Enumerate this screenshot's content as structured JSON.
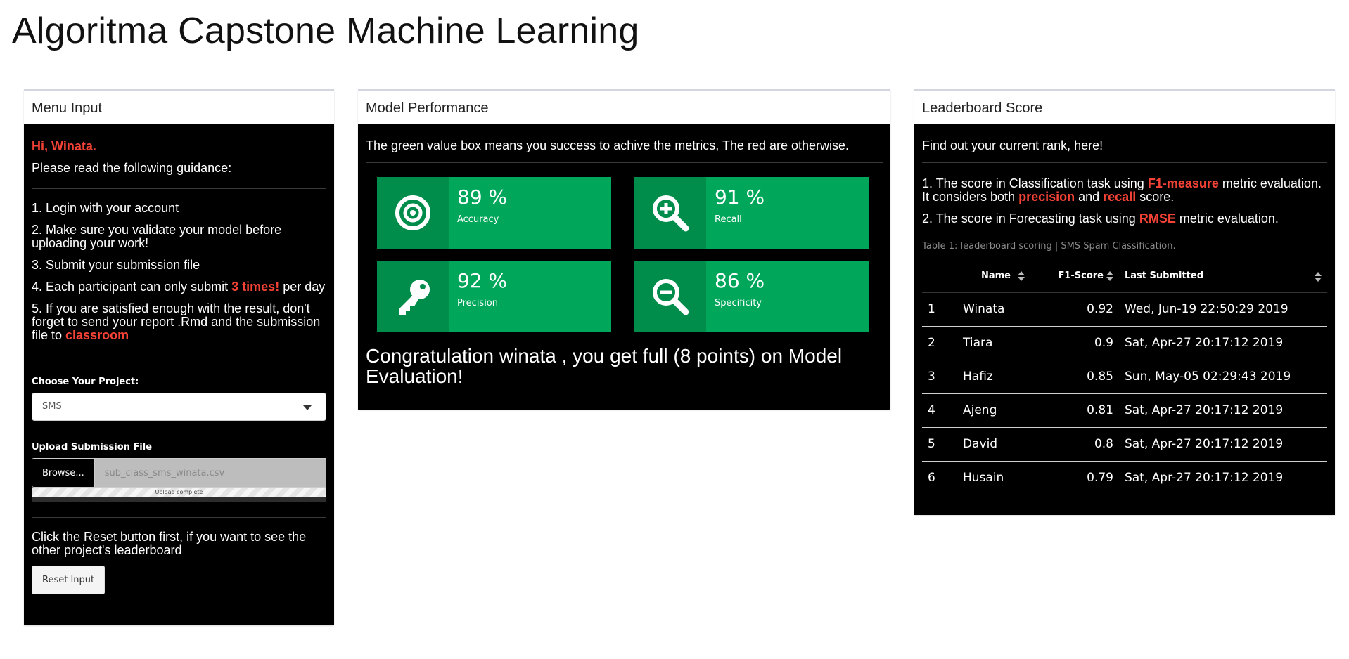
{
  "app": {
    "title": "Algoritma Capstone Machine Learning"
  },
  "menu": {
    "header": "Menu Input",
    "greeting": "Hi, Winata.",
    "guidance_intro": "Please read the following guidance:",
    "steps": [
      "1. Login with your account",
      "2. Make sure you validate your model before uploading your work!",
      "3. Submit your submission file"
    ],
    "step4_prefix": "4. Each participant can only submit ",
    "step4_highlight": "3 times!",
    "step4_suffix": " per day",
    "step5_prefix": "5. If you are satisfied enough with the result, don't forget to send your report .Rmd and the submission file to ",
    "step5_highlight": "classroom",
    "project_label": "Choose Your Project:",
    "project_value": "SMS",
    "upload_label": "Upload Submission File",
    "browse_label": "Browse...",
    "file_name": "sub_class_sms_winata.csv",
    "upload_status": "Upload complete",
    "upload_progress_pct": 100,
    "reset_text": "Click the Reset button first, if you want to see the other project's leaderboard",
    "reset_button": "Reset Input"
  },
  "performance": {
    "header": "Model Performance",
    "note": "The green value box means you success to achive the metrics, The red are otherwise.",
    "value_boxes": [
      {
        "value": "89 %",
        "label": "Accuracy",
        "icon": "bullseye-icon",
        "color": "#00a65a"
      },
      {
        "value": "91 %",
        "label": "Recall",
        "icon": "search-plus-icon",
        "color": "#00a65a"
      },
      {
        "value": "92 %",
        "label": "Precision",
        "icon": "key-icon",
        "color": "#00a65a"
      },
      {
        "value": "86 %",
        "label": "Specificity",
        "icon": "search-minus-icon",
        "color": "#00a65a"
      }
    ],
    "congrats": "Congratulation winata , you get full (8 points) on Model Evaluation!"
  },
  "leaderboard": {
    "header": "Leaderboard Score",
    "intro": "Find out your current rank, here!",
    "crit1_a": "1. The score in Classification task using ",
    "crit1_h1": "F1-measure",
    "crit1_b": " metric evaluation. It considers both ",
    "crit1_h2": "precision",
    "crit1_c": " and ",
    "crit1_h3": "recall",
    "crit1_d": " score.",
    "crit2_a": "2. The score in Forecasting task using ",
    "crit2_h": "RMSE",
    "crit2_b": " metric evaluation.",
    "caption": "Table 1: leaderboard scoring | SMS Spam Classification.",
    "columns": [
      "",
      "Name",
      "F1-Score",
      "Last Submitted"
    ],
    "rows": [
      {
        "rank": "1",
        "name": "Winata",
        "score": "0.92",
        "submitted": "Wed, Jun-19 22:50:29 2019"
      },
      {
        "rank": "2",
        "name": "Tiara",
        "score": "0.9",
        "submitted": "Sat, Apr-27 20:17:12 2019"
      },
      {
        "rank": "3",
        "name": "Hafiz",
        "score": "0.85",
        "submitted": "Sun, May-05 02:29:43 2019"
      },
      {
        "rank": "4",
        "name": "Ajeng",
        "score": "0.81",
        "submitted": "Sat, Apr-27 20:17:12 2019"
      },
      {
        "rank": "5",
        "name": "David",
        "score": "0.8",
        "submitted": "Sat, Apr-27 20:17:12 2019"
      },
      {
        "rank": "6",
        "name": "Husain",
        "score": "0.79",
        "submitted": "Sat, Apr-27 20:17:12 2019"
      }
    ]
  }
}
